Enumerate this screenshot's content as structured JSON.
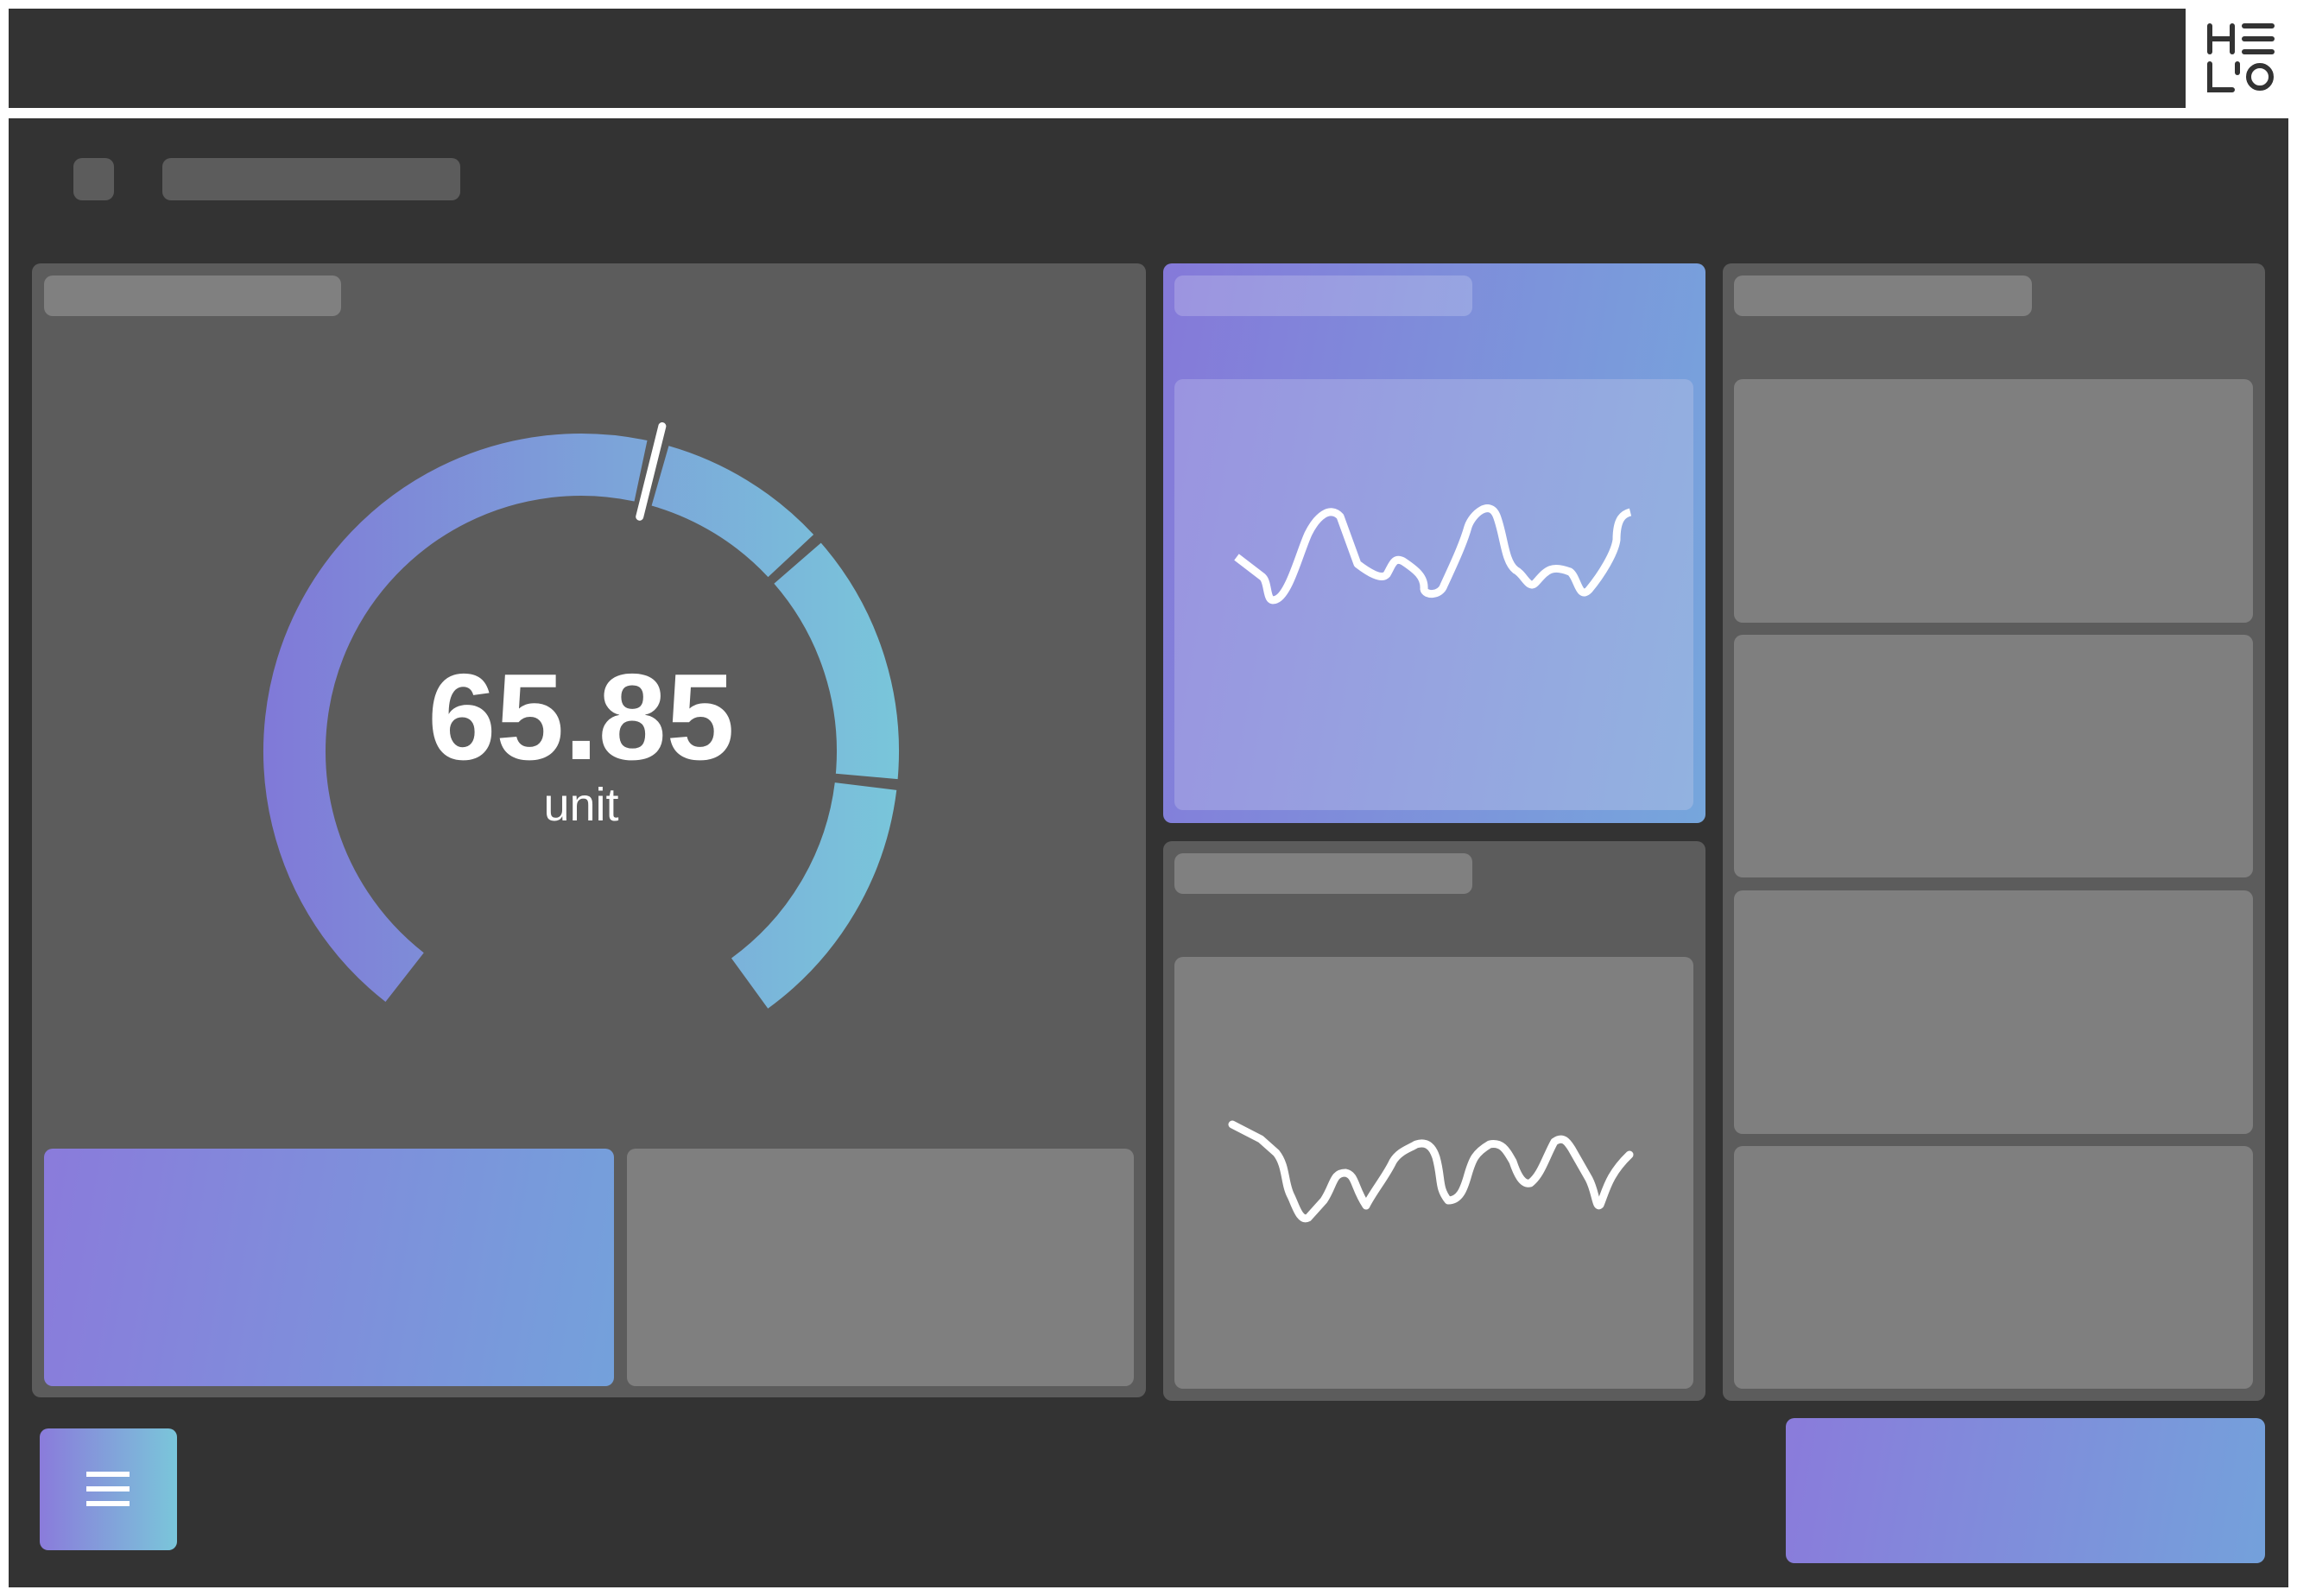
{
  "logo": {
    "text": "HELO"
  },
  "gauge": {
    "value": "65.85",
    "unit": "unit"
  },
  "colors": {
    "background": "#333333",
    "card": "#5c5c5c",
    "tile": "#7f7f7f",
    "accent_start": "#8a7bdb",
    "accent_end": "#7ac6da"
  },
  "icons": {
    "menu": "hamburger-icon"
  }
}
